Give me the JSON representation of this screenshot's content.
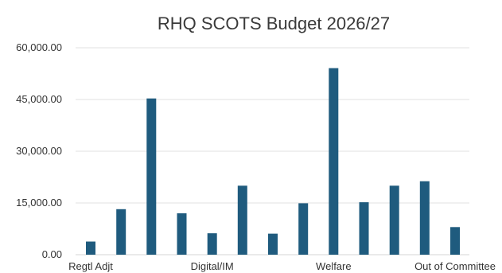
{
  "chart_data": {
    "type": "bar",
    "title": "RHQ SCOTS Budget 2026/27",
    "xlabel": "",
    "ylabel": "",
    "ylim": [
      0,
      60000
    ],
    "yticks": [
      "0.00",
      "15,000.00",
      "30,000.00",
      "45,000.00",
      "60,000.00"
    ],
    "categories": [
      "Regtl Adjt",
      "",
      "",
      "",
      "Digital/IM",
      "",
      "",
      "",
      "Welfare",
      "",
      "",
      "",
      "Out of Committee"
    ],
    "values": [
      3800,
      13200,
      45300,
      12000,
      6200,
      20000,
      6100,
      14900,
      54100,
      15200,
      20000,
      21300,
      8000
    ],
    "bar_color": "#1f5b7e",
    "grid": true,
    "legend": "none"
  }
}
